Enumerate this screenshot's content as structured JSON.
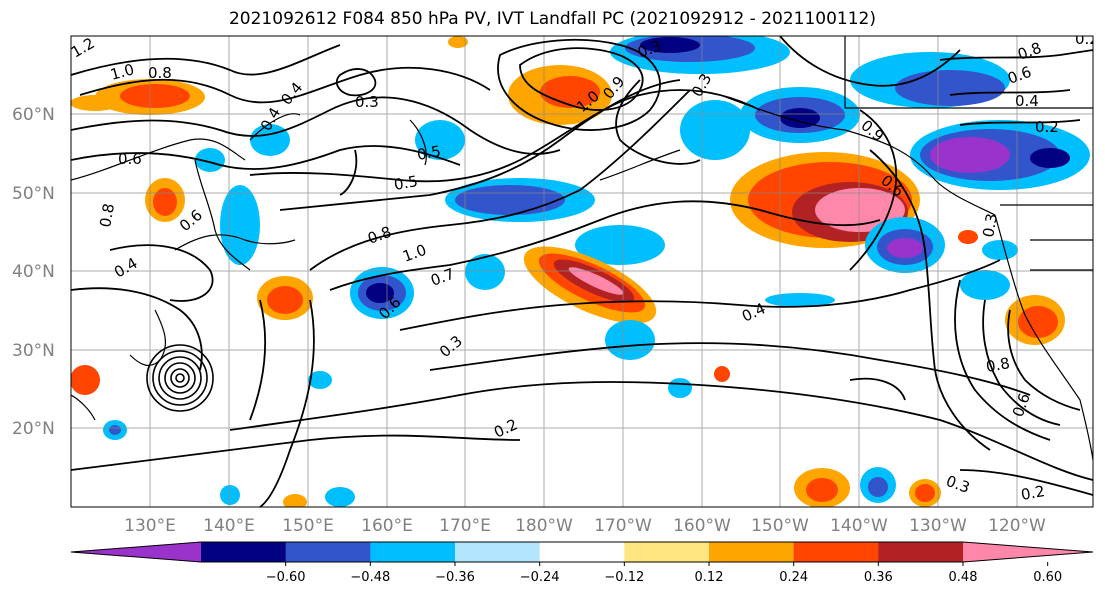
{
  "title": "2021092612 F084 850 hPa PV, IVT Landfall PC (2021092912 - 2021100112)",
  "lat_labels": [
    "60°N",
    "50°N",
    "40°N",
    "30°N",
    "20°N"
  ],
  "lon_labels": [
    "130°E",
    "140°E",
    "150°E",
    "160°E",
    "170°E",
    "180°W",
    "170°W",
    "160°W",
    "150°W",
    "140°W",
    "130°W",
    "120°W"
  ],
  "colorbar": {
    "ticks": [
      "−0.60",
      "−0.48",
      "−0.36",
      "−0.24",
      "−0.12",
      "0.12",
      "0.24",
      "0.36",
      "0.48",
      "0.60"
    ],
    "colors": [
      "#9933cc",
      "#000080",
      "#3355cc",
      "#00bfff",
      "#b3e5ff",
      "#ffffff",
      "#ffe680",
      "#ffa500",
      "#ff4500",
      "#b22222",
      "#ff88aa"
    ]
  },
  "contour_labels": [
    "1.2",
    "1.0",
    "0.8",
    "0.4",
    "0.3",
    "0.5",
    "0.8",
    "1.0",
    "0.7",
    "0.6",
    "0.3",
    "0.2",
    "0.4",
    "0.6",
    "0.8",
    "0.6",
    "0.4",
    "0.2",
    "0.3",
    "0.2",
    "0.8",
    "0.6",
    "0.3",
    "0.6",
    "0.9",
    "1.0",
    "0.3",
    "0.6",
    "0.5",
    "0.4",
    "0.3",
    "0.4",
    "0.9",
    "0.8",
    "0.2"
  ]
}
